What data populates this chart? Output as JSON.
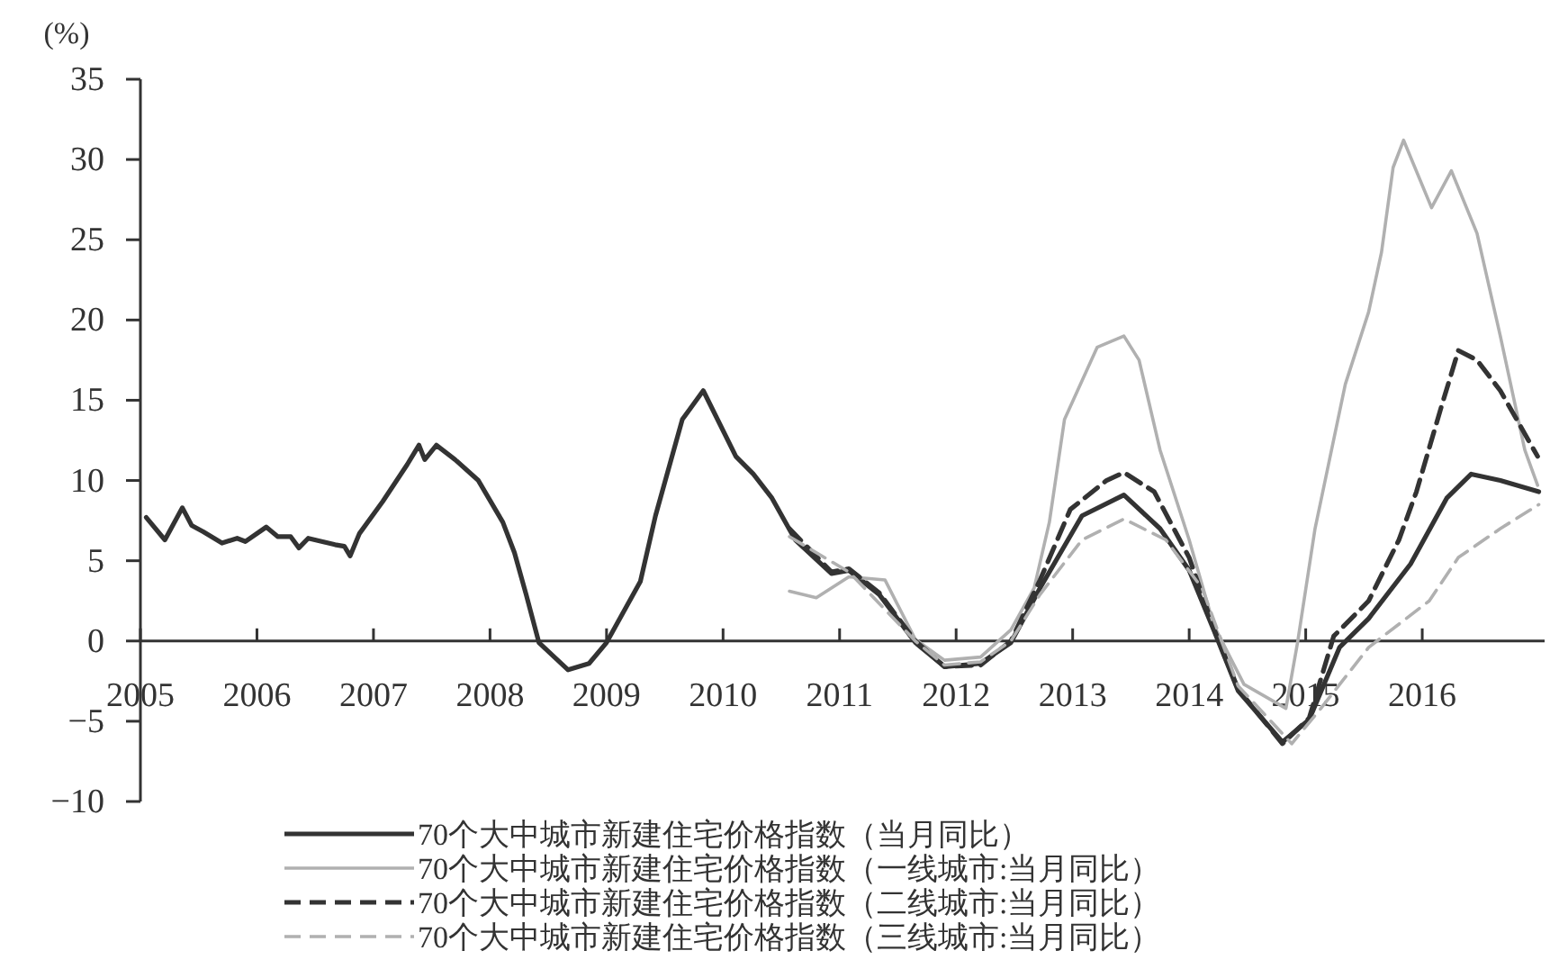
{
  "chart_data": {
    "type": "line",
    "ylabel": "(%)",
    "xlim": [
      2005,
      2017.05
    ],
    "ylim": [
      -10,
      35
    ],
    "xticks": [
      2005,
      2006,
      2007,
      2008,
      2009,
      2010,
      2011,
      2012,
      2013,
      2014,
      2015,
      2016
    ],
    "yticks": [
      -10,
      -5,
      0,
      5,
      10,
      15,
      20,
      25,
      30,
      35
    ],
    "legend": "bottom",
    "grid": false,
    "marker": "none",
    "series": [
      {
        "name": "70个大中城市新建住宅价格指数（当月同比）",
        "color": "#333333",
        "line_style": "solid",
        "x": [
          2005.05,
          2005.21,
          2005.36,
          2005.44,
          2005.54,
          2005.7,
          2005.83,
          2005.9,
          2006.08,
          2006.18,
          2006.29,
          2006.36,
          2006.44,
          2006.67,
          2006.75,
          2006.8,
          2006.88,
          2007.08,
          2007.29,
          2007.39,
          2007.44,
          2007.54,
          2007.7,
          2007.9,
          2008.11,
          2008.21,
          2008.31,
          2008.42,
          2008.67,
          2008.85,
          2009.0,
          2009.29,
          2009.42,
          2009.65,
          2009.83,
          2010.11,
          2010.26,
          2010.42,
          2010.62,
          2010.93,
          2011.08,
          2011.34,
          2011.65,
          2011.9,
          2012.21,
          2012.47,
          2012.72,
          2013.08,
          2013.44,
          2013.75,
          2014.0,
          2014.21,
          2014.42,
          2014.8,
          2015.03,
          2015.29,
          2015.54,
          2015.9,
          2016.21,
          2016.42,
          2016.67,
          2017.0
        ],
        "values": [
          7.7,
          6.3,
          8.3,
          7.2,
          6.8,
          6.1,
          6.4,
          6.2,
          7.1,
          6.5,
          6.5,
          5.8,
          6.4,
          6.0,
          5.9,
          5.3,
          6.7,
          8.7,
          11.0,
          12.2,
          11.3,
          12.2,
          11.3,
          10.0,
          7.4,
          5.5,
          2.9,
          -0.1,
          -1.8,
          -1.4,
          -0.1,
          3.7,
          7.8,
          13.8,
          15.6,
          11.5,
          10.4,
          8.9,
          6.3,
          4.2,
          4.4,
          2.9,
          -0.1,
          -1.6,
          -1.4,
          -0.1,
          3.3,
          7.8,
          9.1,
          7.0,
          4.4,
          0.7,
          -3.1,
          -6.3,
          -4.9,
          -0.4,
          1.4,
          4.8,
          8.9,
          10.4,
          10.0,
          9.3
        ]
      },
      {
        "name": "70个大中城市新建住宅价格指数（一线城市:当月同比）",
        "color": "#b0b0b0",
        "line_style": "solid",
        "x": [
          2010.57,
          2010.8,
          2011.08,
          2011.39,
          2011.65,
          2011.9,
          2012.21,
          2012.47,
          2012.67,
          2012.8,
          2012.93,
          2013.21,
          2013.44,
          2013.57,
          2013.75,
          2014.0,
          2014.21,
          2014.47,
          2014.83,
          2014.93,
          2015.08,
          2015.34,
          2015.54,
          2015.65,
          2015.75,
          2015.84,
          2016.08,
          2016.25,
          2016.47,
          2016.67,
          2016.88,
          2016.99
        ],
        "values": [
          3.1,
          2.7,
          4.0,
          3.8,
          0.1,
          -1.2,
          -1.0,
          0.7,
          3.3,
          7.4,
          13.8,
          18.3,
          19.0,
          17.5,
          11.9,
          6.3,
          1.0,
          -2.7,
          -4.2,
          -0.1,
          7.0,
          16.0,
          20.5,
          24.2,
          29.5,
          31.2,
          27.0,
          29.3,
          25.4,
          19.0,
          11.9,
          9.7
        ]
      },
      {
        "name": "70个大中城市新建住宅价格指数（二线城市:当月同比）",
        "color": "#333333",
        "line_style": "dashed",
        "x": [
          2010.57,
          2010.93,
          2011.08,
          2011.34,
          2011.65,
          2011.9,
          2012.21,
          2012.47,
          2012.72,
          2012.98,
          2013.29,
          2013.44,
          2013.7,
          2014.0,
          2014.21,
          2014.42,
          2014.8,
          2015.03,
          2015.24,
          2015.54,
          2015.8,
          2015.95,
          2016.16,
          2016.31,
          2016.47,
          2016.67,
          2016.99
        ],
        "values": [
          7.0,
          4.3,
          4.5,
          3.0,
          0.0,
          -1.6,
          -1.5,
          0.0,
          3.8,
          8.2,
          10.0,
          10.5,
          9.3,
          5.2,
          0.8,
          -3.0,
          -6.4,
          -4.8,
          0.3,
          2.5,
          6.3,
          9.3,
          14.5,
          18.1,
          17.5,
          15.6,
          11.5
        ]
      },
      {
        "name": "70个大中城市新建住宅价格指数（三线城市:当月同比）",
        "color": "#b0b0b0",
        "line_style": "dashed",
        "x": [
          2010.57,
          2011.08,
          2011.65,
          2011.9,
          2012.21,
          2012.47,
          2012.72,
          2013.08,
          2013.44,
          2013.8,
          2014.11,
          2014.42,
          2014.88,
          2015.13,
          2015.54,
          2016.06,
          2016.31,
          2016.67,
          2017.0
        ],
        "values": [
          6.5,
          4.3,
          0.0,
          -1.5,
          -1.3,
          0.0,
          2.9,
          6.3,
          7.6,
          6.3,
          3.3,
          -2.8,
          -6.4,
          -4.2,
          -0.4,
          2.5,
          5.2,
          7.0,
          8.5
        ]
      }
    ]
  }
}
